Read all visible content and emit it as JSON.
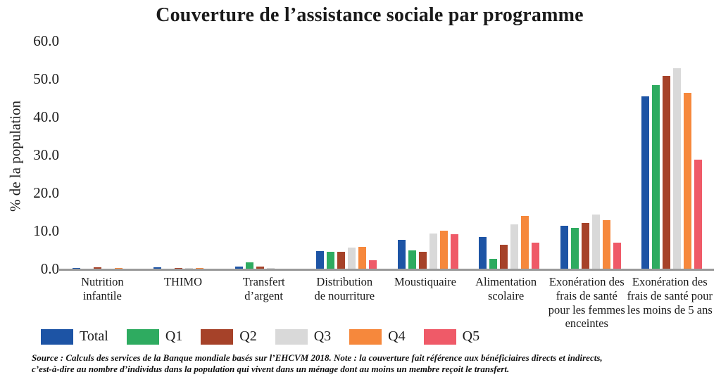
{
  "title": "Couverture de l’assistance sociale par programme",
  "y_axis": {
    "label": "% de la population",
    "ticks": [
      "60.0",
      "50.0",
      "40.0",
      "30.0",
      "20.0",
      "10.0",
      "0.0"
    ]
  },
  "x_axis": {
    "label_lines": [
      [
        "Nutrition",
        "infantile"
      ],
      [
        "THIMO"
      ],
      [
        "Transfert",
        "d’argent"
      ],
      [
        "Distribution",
        "de nourriture"
      ],
      [
        "Moustiquaire"
      ],
      [
        "Alimentation",
        "scolaire"
      ],
      [
        "Exonération des",
        "frais de santé",
        "pour les femmes",
        "enceintes"
      ],
      [
        "Exonération des",
        "frais de santé pour",
        "les moins de 5 ans"
      ]
    ]
  },
  "legend": [
    {
      "name": "Total",
      "color": "#1D54A5"
    },
    {
      "name": "Q1",
      "color": "#2EAB60"
    },
    {
      "name": "Q2",
      "color": "#A64229"
    },
    {
      "name": "Q3",
      "color": "#D9D9D9"
    },
    {
      "name": "Q4",
      "color": "#F6883C"
    },
    {
      "name": "Q5",
      "color": "#EF5A68"
    }
  ],
  "footer": {
    "line1": "Source : Calculs des services de la Banque mondiale basés sur l’EHCVM 2018. Note : la couverture fait référence aux bénéficiaires directs et indirects,",
    "line2": "c’est-à-dire au nombre d’individus dans la population qui vivent dans un ménage dont au moins un membre reçoit le transfert."
  },
  "chart_data": {
    "type": "bar",
    "title": "Couverture de l’assistance sociale par programme",
    "xlabel": "",
    "ylabel": "% de la population",
    "ylim": [
      0,
      60
    ],
    "grid": false,
    "legend_position": "bottom",
    "categories": [
      "Nutrition infantile",
      "THIMO",
      "Transfert d’argent",
      "Distribution de nourriture",
      "Moustiquaire",
      "Alimentation scolaire",
      "Exonération des frais de santé pour les femmes enceintes",
      "Exonération des frais de santé pour les moins de 5 ans"
    ],
    "series": [
      {
        "name": "Total",
        "color": "#1D54A5",
        "values": [
          0.3,
          0.5,
          0.8,
          4.8,
          7.7,
          8.5,
          11.5,
          45.5
        ]
      },
      {
        "name": "Q1",
        "color": "#2EAB60",
        "values": [
          0.2,
          0.2,
          1.8,
          4.7,
          5.0,
          2.8,
          10.9,
          48.5
        ]
      },
      {
        "name": "Q2",
        "color": "#A64229",
        "values": [
          0.5,
          0.4,
          0.7,
          4.6,
          4.7,
          6.4,
          12.2,
          51.0
        ]
      },
      {
        "name": "Q3",
        "color": "#D9D9D9",
        "values": [
          0.2,
          0.4,
          0.4,
          5.8,
          9.5,
          11.9,
          14.5,
          53.0
        ]
      },
      {
        "name": "Q4",
        "color": "#F6883C",
        "values": [
          0.3,
          0.4,
          0.2,
          6.0,
          10.2,
          14.1,
          13.0,
          46.5
        ]
      },
      {
        "name": "Q5",
        "color": "#EF5A68",
        "values": [
          0.2,
          0.2,
          0.2,
          2.4,
          9.2,
          7.0,
          7.0,
          28.8
        ]
      }
    ]
  }
}
